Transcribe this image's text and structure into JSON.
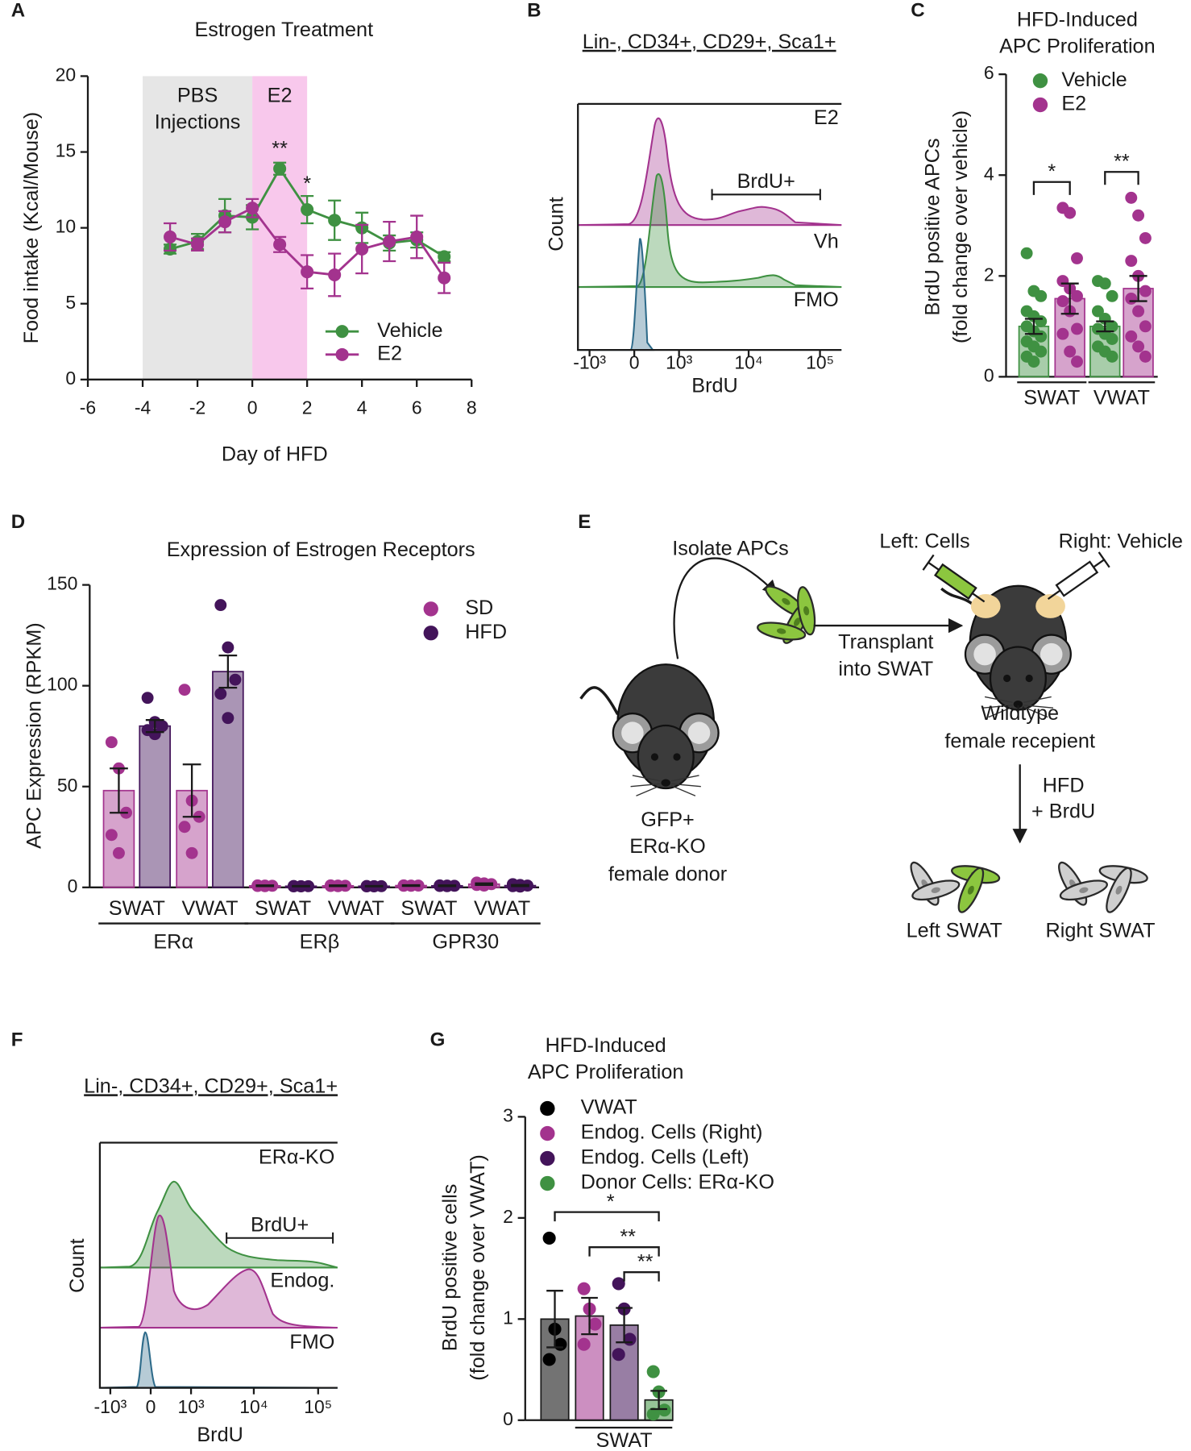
{
  "chart_data": [
    {
      "panel": "A",
      "type": "line",
      "title": "Estrogen Treatment",
      "x_label": "Day of HFD",
      "y_label": "Food intake (Kcal/Mouse)",
      "x": [
        -3,
        -2,
        -1,
        0,
        1,
        2,
        3,
        4,
        5,
        6,
        7
      ],
      "xlim": [
        -6,
        8
      ],
      "xticks": [
        -6,
        -4,
        -2,
        0,
        2,
        4,
        6,
        8
      ],
      "ylim": [
        0,
        20
      ],
      "yticks": [
        0,
        5,
        10,
        15,
        20
      ],
      "shaded_regions": [
        {
          "x": [
            -4,
            0
          ],
          "color": "#e6e6e6",
          "label": [
            "PBS",
            "Injections"
          ]
        },
        {
          "x": [
            0,
            2
          ],
          "color": "#f8c8ec",
          "label": [
            "E2"
          ]
        }
      ],
      "series": [
        {
          "name": "Vehicle",
          "color": "#3f9142",
          "values": [
            8.6,
            9.1,
            10.8,
            10.7,
            13.9,
            11.2,
            10.5,
            10.0,
            9.0,
            9.2,
            8.1
          ],
          "errors": [
            0.3,
            0.5,
            1.1,
            0.8,
            0.4,
            0.9,
            1.3,
            1.0,
            0.5,
            0.5,
            0.3
          ]
        },
        {
          "name": "E2",
          "color": "#a3338e",
          "values": [
            9.4,
            8.9,
            10.4,
            11.3,
            8.9,
            7.1,
            6.9,
            8.6,
            9.1,
            9.4,
            6.7
          ],
          "errors": [
            0.9,
            0.4,
            0.7,
            0.6,
            0.5,
            1.1,
            1.4,
            1.6,
            1.3,
            1.4,
            1.0
          ]
        }
      ],
      "annotations": [
        "**",
        "*"
      ],
      "legend": "lower right"
    },
    {
      "panel": "B",
      "type": "flow_histogram",
      "title": "Lin-, CD34+, CD29+, Sca1+",
      "x_label": "BrdU",
      "y_label": "Count",
      "x_scale": "biexponential",
      "xlim": [
        -1500,
        200000
      ],
      "xticks": [
        {
          "value": -1000,
          "label": "-10³"
        },
        0,
        {
          "value": 1000,
          "label": "10³"
        },
        {
          "value": 10000,
          "label": "10⁴"
        },
        {
          "value": 100000,
          "label": "10⁵"
        }
      ],
      "gate_label": "BrdU+",
      "tracks": [
        {
          "name": "E2",
          "color": "#a3338e",
          "label_color": "#a3338e"
        },
        {
          "name": "Vh",
          "color": "#3f9142",
          "label_color": "#3f9142"
        },
        {
          "name": "FMO",
          "color": "#2e6b8a",
          "label_color": "#1a1a1a"
        }
      ]
    },
    {
      "panel": "C",
      "type": "bar",
      "title": [
        "HFD-Induced",
        "APC Proliferation"
      ],
      "y_label": [
        "BrdU positive APCs",
        "(fold change over vehicle)"
      ],
      "categories": [
        "SWAT",
        "VWAT"
      ],
      "ylim": [
        0,
        6
      ],
      "yticks": [
        0,
        2,
        4,
        6
      ],
      "series": [
        {
          "name": "Vehicle",
          "color": "#3f9142",
          "values": [
            1.0,
            1.0
          ],
          "errors": [
            0.15,
            0.1
          ],
          "points": [
            [
              2.45,
              1.7,
              1.6,
              1.3,
              1.2,
              1.1,
              1.0,
              0.9,
              0.8,
              0.7,
              0.6,
              0.5,
              0.4,
              0.3
            ],
            [
              1.9,
              1.85,
              1.6,
              1.3,
              1.15,
              1.0,
              0.95,
              0.85,
              0.75,
              0.6,
              0.5,
              0.4
            ]
          ]
        },
        {
          "name": "E2",
          "color": "#a3338e",
          "values": [
            1.55,
            1.75
          ],
          "errors": [
            0.3,
            0.25
          ],
          "points": [
            [
              3.35,
              3.25,
              2.35,
              1.9,
              1.75,
              1.6,
              1.5,
              1.3,
              0.95,
              0.85,
              0.5,
              0.3
            ],
            [
              3.55,
              3.2,
              2.75,
              2.3,
              2.0,
              1.7,
              1.55,
              1.3,
              1.0,
              0.8,
              0.6,
              0.4
            ]
          ]
        }
      ],
      "annotations": [
        "*",
        "**"
      ],
      "legend": "upper left"
    },
    {
      "panel": "D",
      "type": "bar",
      "title": "Expression of Estrogen Receptors",
      "y_label": "APC Expression (RPKM)",
      "categories": [
        "SWAT",
        "VWAT",
        "SWAT",
        "VWAT",
        "SWAT",
        "VWAT"
      ],
      "groups": [
        "ERα",
        "ERβ",
        "GPR30"
      ],
      "ylim": [
        0,
        150
      ],
      "yticks": [
        0,
        50,
        100,
        150
      ],
      "series": [
        {
          "name": "SD",
          "color": "#a3338e",
          "values": [
            48,
            48,
            0.8,
            0.8,
            0.9,
            1.6
          ],
          "errors": [
            11,
            13,
            0.2,
            0.2,
            0.2,
            0.4
          ],
          "points": [
            [
              72,
              59,
              37,
              26,
              17
            ],
            [
              98,
              43,
              35,
              30,
              17
            ],
            [
              1,
              0.9,
              0.8,
              0.7,
              0.6
            ],
            [
              1,
              0.9,
              0.8,
              0.7,
              0.6
            ],
            [
              1,
              0.9,
              0.9,
              0.8,
              0.8
            ],
            [
              2.4,
              2,
              1.6,
              1.2,
              0.9
            ]
          ]
        },
        {
          "name": "HFD",
          "color": "#43145a",
          "values": [
            80,
            107,
            0.6,
            0.6,
            0.8,
            0.9
          ],
          "errors": [
            3,
            8,
            0.1,
            0.1,
            0.2,
            0.3
          ],
          "points": [
            [
              94,
              82,
              80,
              78,
              76
            ],
            [
              140,
              119,
              103,
              96,
              84
            ],
            [
              0.7,
              0.6,
              0.6,
              0.5,
              0.5
            ],
            [
              0.7,
              0.6,
              0.6,
              0.5,
              0.5
            ],
            [
              1,
              0.9,
              0.8,
              0.7,
              0.6
            ],
            [
              1.6,
              1.2,
              0.9,
              0.6,
              0.4
            ]
          ]
        }
      ],
      "legend": "upper right"
    },
    {
      "panel": "F",
      "type": "flow_histogram",
      "title": "Lin-, CD34+, CD29+, Sca1+",
      "x_label": "BrdU",
      "y_label": "Count",
      "x_scale": "biexponential",
      "xlim": [
        -1500,
        200000
      ],
      "xticks": [
        {
          "value": -1000,
          "label": "-10³"
        },
        0,
        {
          "value": 1000,
          "label": "10³"
        },
        {
          "value": 10000,
          "label": "10⁴"
        },
        {
          "value": 100000,
          "label": "10⁵"
        }
      ],
      "gate_label": "BrdU+",
      "tracks": [
        {
          "name": "ERα-KO",
          "color": "#3f9142",
          "label_color": "#3f9142"
        },
        {
          "name": "Endog.",
          "color": "#a3338e",
          "label_color": "#a3338e"
        },
        {
          "name": "FMO",
          "color": "#2e6b8a",
          "label_color": "#1a1a1a"
        }
      ]
    },
    {
      "panel": "G",
      "type": "bar",
      "title": [
        "HFD-Induced",
        "APC Proliferation"
      ],
      "y_label": [
        "BrdU positive cells",
        "(fold change over VWAT)"
      ],
      "categories": [
        "VWAT",
        "Endog. Cells (Right)",
        "Endog. Cells (Left)",
        "Donor Cells: ERα-KO"
      ],
      "group_label": "SWAT",
      "colors": [
        "#000000",
        "#a3338e",
        "#43145a",
        "#3f9142"
      ],
      "values": [
        1.0,
        1.03,
        0.94,
        0.2
      ],
      "errors": [
        0.28,
        0.18,
        0.17,
        0.09
      ],
      "points": [
        [
          1.8,
          0.9,
          0.75,
          0.6
        ],
        [
          1.3,
          1.1,
          0.95,
          0.75
        ],
        [
          1.35,
          1.1,
          0.8,
          0.65
        ],
        [
          0.48,
          0.28,
          0.1,
          0.06
        ]
      ],
      "ylim": [
        0,
        3
      ],
      "yticks": [
        0,
        1,
        2,
        3
      ],
      "annotations": [
        "*",
        "**",
        "**"
      ],
      "legend": "upper left"
    }
  ],
  "diagram": {
    "panel": "E",
    "isolate": "Isolate APCs",
    "left_injection": "Left: Cells",
    "right_injection": "Right: Vehicle",
    "transplant": [
      "Transplant",
      "into SWAT"
    ],
    "recipient": [
      "Wildtype",
      "female recepient"
    ],
    "treatment": [
      "HFD",
      "+ BrdU"
    ],
    "donor": [
      "GFP+",
      "ERα-KO",
      "female donor"
    ],
    "left_swat": "Left SWAT",
    "right_swat": "Right SWAT"
  }
}
